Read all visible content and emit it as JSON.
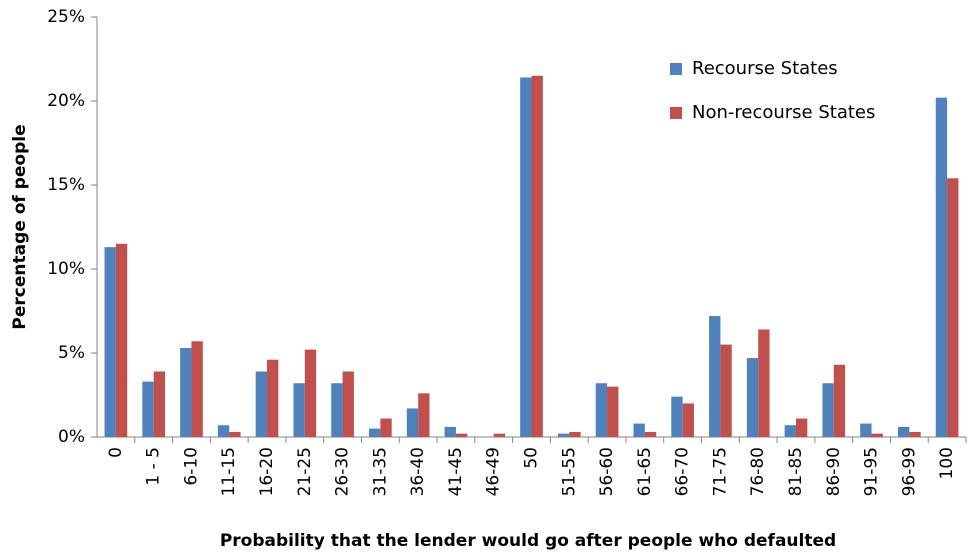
{
  "chart_data": {
    "type": "bar",
    "x_label": "Probability that the lender would go after people who defaulted",
    "y_label": "Percentage of people",
    "categories": [
      "0",
      "1 - 5",
      "6-10",
      "11-15",
      "16-20",
      "21-25",
      "26-30",
      "31-35",
      "36-40",
      "41-45",
      "46-49",
      "50",
      "51-55",
      "56-60",
      "61-65",
      "66-70",
      "71-75",
      "76-80",
      "81-85",
      "86-90",
      "91-95",
      "96-99",
      "100"
    ],
    "series": [
      {
        "name": "Recourse States",
        "color": "#4f81bd",
        "values": [
          11.3,
          3.3,
          5.3,
          0.7,
          3.9,
          3.2,
          3.2,
          0.5,
          1.7,
          0.6,
          0,
          21.4,
          0.2,
          3.2,
          0.8,
          2.4,
          7.2,
          4.7,
          0.7,
          3.2,
          0.8,
          0.6,
          20.2
        ]
      },
      {
        "name": "Non-recourse States",
        "color": "#c0504d",
        "values": [
          11.5,
          3.9,
          5.7,
          0.3,
          4.6,
          5.2,
          3.9,
          1.1,
          2.6,
          0.2,
          0.2,
          21.5,
          0.3,
          3.0,
          0.3,
          2.0,
          5.5,
          6.4,
          1.1,
          4.3,
          0.2,
          0.3,
          15.4
        ]
      }
    ],
    "ylim": [
      0,
      25
    ],
    "yticks": [
      {
        "value": 0,
        "label": "0%"
      },
      {
        "value": 5,
        "label": "5%"
      },
      {
        "value": 10,
        "label": "10%"
      },
      {
        "value": 15,
        "label": "15%"
      },
      {
        "value": 20,
        "label": "20%"
      },
      {
        "value": 25,
        "label": "25%"
      }
    ],
    "grid": false,
    "legend": "upper right"
  }
}
